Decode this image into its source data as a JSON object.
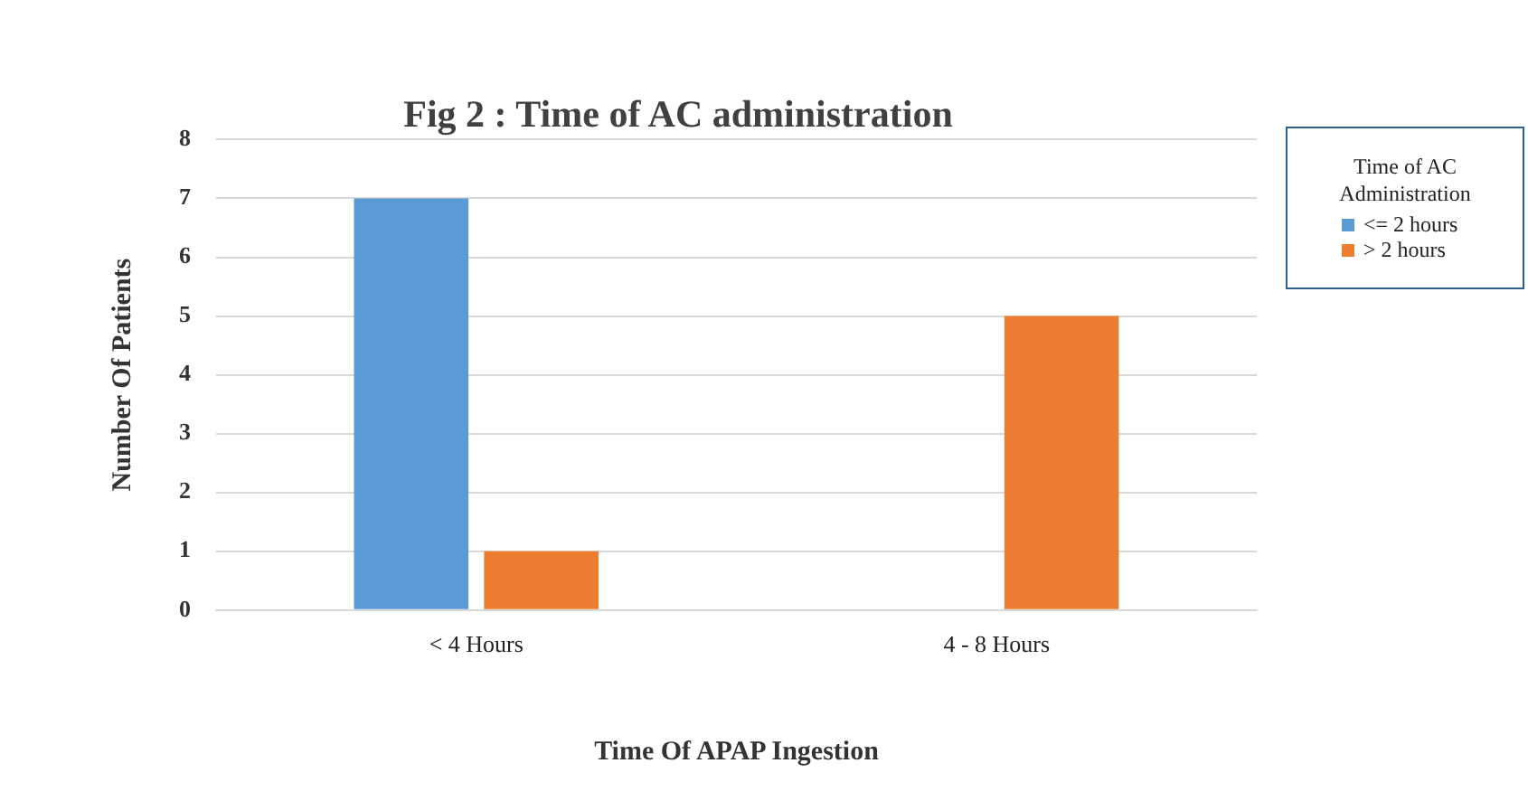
{
  "chart_data": {
    "type": "bar",
    "title": "Fig 2 : Time of AC administration",
    "xlabel": "Time Of APAP Ingestion",
    "ylabel": "Number Of Patients",
    "legend_title": "Time of AC Administration",
    "categories": [
      "< 4 Hours",
      "4 - 8 Hours"
    ],
    "series": [
      {
        "name": "<= 2 hours",
        "color": "#5b9bd5",
        "values": [
          7,
          0
        ]
      },
      {
        "name": "> 2 hours",
        "color": "#ed7d31",
        "values": [
          1,
          5
        ]
      }
    ],
    "ylim": [
      0,
      8
    ],
    "yticks": [
      0,
      1,
      2,
      3,
      4,
      5,
      6,
      7,
      8
    ],
    "grid": "y",
    "legend": "right"
  }
}
